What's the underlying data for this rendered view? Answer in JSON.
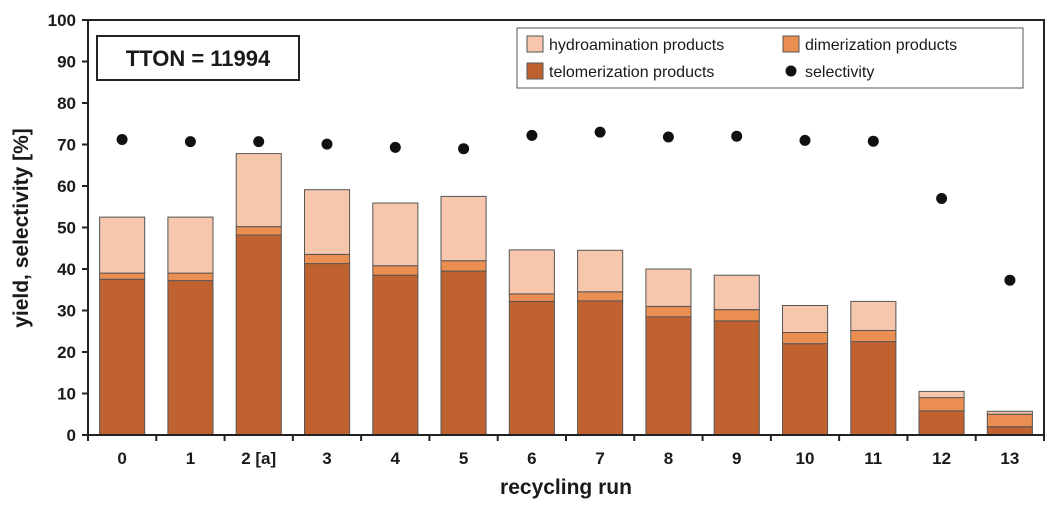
{
  "chart_data": {
    "type": "bar",
    "stacked": true,
    "xlabel": "recycling run",
    "ylabel": "yield, selectivity [%]",
    "ylim": [
      0,
      100
    ],
    "yticks": [
      0,
      10,
      20,
      30,
      40,
      50,
      60,
      70,
      80,
      90,
      100
    ],
    "categories": [
      "0",
      "1",
      "2 [a]",
      "3",
      "4",
      "5",
      "6",
      "7",
      "8",
      "9",
      "10",
      "11",
      "12",
      "13"
    ],
    "series": [
      {
        "name": "telomerization products",
        "kind": "bar",
        "color": "#c0622f",
        "values": [
          37.5,
          37.2,
          48.2,
          41.3,
          38.5,
          39.5,
          32.2,
          32.3,
          28.5,
          27.5,
          22.0,
          22.5,
          5.8,
          2.0
        ]
      },
      {
        "name": "dimerization products",
        "kind": "bar",
        "color": "#eb8e52",
        "values": [
          1.5,
          1.8,
          2.0,
          2.2,
          2.3,
          2.5,
          1.8,
          2.2,
          2.5,
          2.7,
          2.7,
          2.7,
          3.2,
          3.0
        ]
      },
      {
        "name": "hydroamination products",
        "kind": "bar",
        "color": "#f7c7ad",
        "values": [
          13.5,
          13.5,
          17.6,
          15.6,
          15.1,
          15.5,
          10.6,
          10.0,
          9.0,
          8.3,
          6.5,
          7.0,
          1.5,
          0.7
        ]
      },
      {
        "name": "selectivity",
        "kind": "scatter",
        "color": "#111111",
        "values": [
          71.2,
          70.7,
          70.7,
          70.1,
          69.3,
          69.0,
          72.2,
          73.0,
          71.8,
          72.0,
          71.0,
          70.8,
          57.0,
          37.3
        ]
      }
    ],
    "legend": {
      "position": "top-right",
      "order": [
        "hydroamination products",
        "dimerization products",
        "telomerization products",
        "selectivity"
      ]
    },
    "annotation": "TTON = 11994",
    "grid": false
  }
}
